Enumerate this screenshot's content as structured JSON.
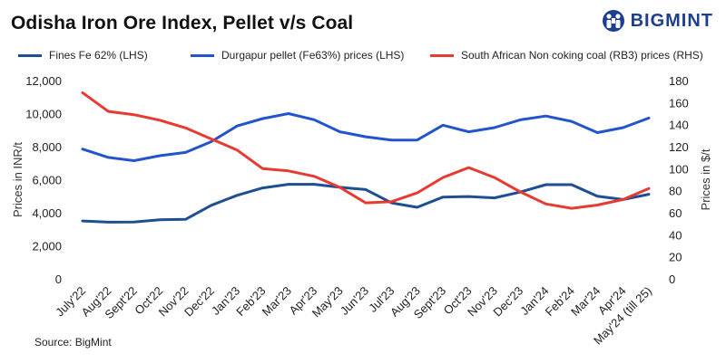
{
  "header": {
    "title": "Odisha Iron Ore Index, Pellet v/s Coal",
    "brand": "BIGMINT"
  },
  "source": "Source: BigMint",
  "colors": {
    "fines": "#1d4f91",
    "pellet": "#2255cc",
    "coal": "#e63a32",
    "logo": "#1d3f8f"
  },
  "chart_data": {
    "type": "line",
    "categories": [
      "July'22",
      "Aug'22",
      "Sept'22",
      "Oct'22",
      "Nov'22",
      "Dec'22",
      "Jan'23",
      "Feb'23",
      "Mar'23",
      "Apr'23",
      "May'23",
      "Jun'23",
      "Jul'23",
      "Aug'23",
      "Sept'23",
      "Oct'23",
      "Nov'23",
      "Dec'23",
      "Jan'24",
      "Feb'24",
      "Mar'24",
      "Apr'24",
      "May'24 (till 25)"
    ],
    "ylabel": "Prices in INR/t",
    "y2label": "Prices in $/t",
    "ylim": [
      0,
      12000
    ],
    "y2lim": [
      0,
      180
    ],
    "yticks": [
      "0",
      "2,000",
      "4,000",
      "6,000",
      "8,000",
      "10,000",
      "12,000"
    ],
    "y2ticks": [
      "0",
      "20",
      "40",
      "60",
      "80",
      "100",
      "120",
      "140",
      "160",
      "180"
    ],
    "legend_position": "top",
    "grid": false,
    "series": [
      {
        "name": "Fines Fe 62% (LHS)",
        "axis": "left",
        "values": [
          3500,
          3430,
          3440,
          3580,
          3600,
          4450,
          5050,
          5500,
          5720,
          5720,
          5540,
          5400,
          4600,
          4330,
          4950,
          4980,
          4900,
          5250,
          5700,
          5700,
          5000,
          4800,
          5120
        ]
      },
      {
        "name": "Durgapur pellet (Fe63%) prices (LHS)",
        "axis": "left",
        "values": [
          7850,
          7350,
          7150,
          7450,
          7650,
          8300,
          9250,
          9700,
          10000,
          9630,
          8900,
          8600,
          8400,
          8400,
          9300,
          8900,
          9150,
          9620,
          9850,
          9530,
          8850,
          9150,
          9730
        ]
      },
      {
        "name": "South African Non coking coal (RB3) prices (RHS)",
        "axis": "right",
        "values": [
          169,
          152,
          149,
          144,
          137,
          127,
          117,
          100,
          98,
          93,
          83,
          69,
          70,
          78,
          92,
          101,
          92,
          79,
          68,
          64,
          67,
          72,
          82
        ]
      }
    ]
  }
}
